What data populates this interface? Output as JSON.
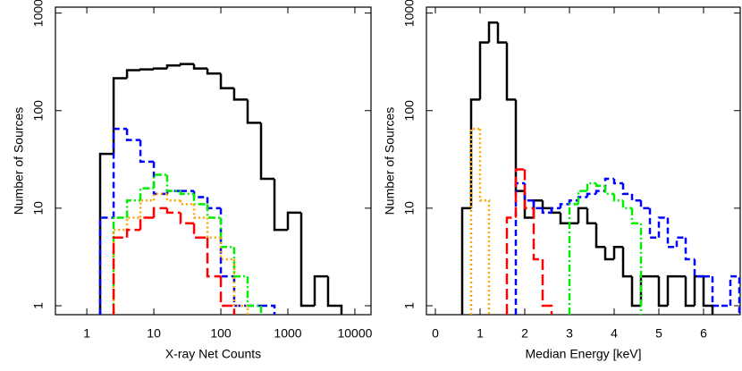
{
  "chart_data": [
    {
      "type": "histogram",
      "xlabel": "X-ray Net Counts",
      "ylabel": "Number of Sources",
      "xscale": "log",
      "yscale": "log",
      "xlim": [
        0.34,
        17400
      ],
      "xticks": [
        1,
        10,
        100,
        1000,
        10000
      ],
      "ylim": [
        0.81,
        1150
      ],
      "yticks": [
        1,
        10,
        100,
        1000
      ],
      "bins": [
        1.58,
        2.51,
        3.98,
        6.31,
        10,
        15.8,
        25.1,
        39.8,
        63.1,
        100,
        158,
        251,
        398,
        631,
        1000,
        1585,
        2512,
        3981,
        6310
      ],
      "series": [
        {
          "color": "#000000",
          "linestyle": "solid",
          "values": [
            36,
            215,
            260,
            265,
            270,
            290,
            300,
            270,
            240,
            170,
            130,
            75,
            20,
            6,
            9,
            1,
            2,
            1
          ]
        },
        {
          "color": "#0000ff",
          "linestyle": "dashed",
          "values": [
            8,
            65,
            50,
            30,
            14,
            15,
            15,
            13,
            10,
            2,
            1,
            1,
            1,
            null,
            null,
            null,
            null,
            null
          ]
        },
        {
          "color": "#00ee00",
          "linestyle": "dotdash",
          "values": [
            null,
            8,
            12,
            16,
            22,
            15,
            14,
            11,
            8,
            4,
            2,
            1,
            null,
            null,
            null,
            null,
            null,
            null
          ]
        },
        {
          "color": "#ffa500",
          "linestyle": "dotted",
          "values": [
            null,
            6,
            8,
            12,
            14,
            12,
            11,
            8,
            5,
            3,
            1,
            null,
            null,
            null,
            null,
            null,
            null,
            null
          ]
        },
        {
          "color": "#ff0000",
          "linestyle": "longdash",
          "values": [
            null,
            5,
            6,
            8,
            10,
            9,
            7,
            5,
            2,
            1,
            null,
            null,
            null,
            null,
            null,
            null,
            null,
            null
          ]
        }
      ]
    },
    {
      "type": "histogram",
      "xlabel": "Median Energy [keV]",
      "ylabel": "Number of Sources",
      "xscale": "linear",
      "yscale": "log",
      "xlim": [
        -0.2,
        6.82
      ],
      "xticks": [
        0,
        1,
        2,
        3,
        4,
        5,
        6
      ],
      "ylim": [
        0.81,
        1150
      ],
      "yticks": [
        1,
        10,
        100,
        1000
      ],
      "bins": [
        0.6,
        0.8,
        1.0,
        1.2,
        1.4,
        1.6,
        1.8,
        2.0,
        2.2,
        2.4,
        2.6,
        2.8,
        3.0,
        3.2,
        3.4,
        3.6,
        3.8,
        4.0,
        4.2,
        4.4,
        4.6,
        4.8,
        5.0,
        5.2,
        5.4,
        5.6,
        5.8,
        6.0,
        6.2,
        6.4,
        6.6,
        6.8
      ],
      "series": [
        {
          "color": "#000000",
          "linestyle": "solid",
          "values": [
            10,
            130,
            500,
            800,
            500,
            130,
            15,
            8,
            12,
            10,
            9,
            7,
            7,
            10,
            7,
            4,
            3,
            4,
            2,
            1,
            2,
            2,
            1,
            2,
            2,
            1,
            2,
            1,
            null,
            null,
            null
          ]
        },
        {
          "color": "#0000ff",
          "linestyle": "dashed",
          "values": [
            null,
            null,
            null,
            null,
            null,
            null,
            18,
            12,
            10,
            9,
            10,
            11,
            12,
            13,
            14,
            15,
            20,
            18,
            14,
            12,
            10,
            5,
            8,
            4,
            5,
            3,
            2,
            2,
            1,
            1,
            2
          ]
        },
        {
          "color": "#00ee00",
          "linestyle": "dotdash",
          "values": [
            null,
            null,
            null,
            null,
            null,
            null,
            null,
            null,
            null,
            null,
            null,
            null,
            11,
            15,
            18,
            17,
            14,
            12,
            10,
            7,
            null,
            null,
            null,
            null,
            null,
            null,
            null,
            null,
            null,
            null,
            null
          ]
        },
        {
          "color": "#ffa500",
          "linestyle": "dotted",
          "values": [
            null,
            65,
            12,
            null,
            null,
            null,
            null,
            null,
            null,
            null,
            null,
            null,
            null,
            null,
            null,
            null,
            null,
            null,
            null,
            null,
            null,
            null,
            null,
            null,
            null,
            null,
            null,
            null,
            null,
            null,
            null
          ]
        },
        {
          "color": "#ff0000",
          "linestyle": "longdash",
          "values": [
            null,
            null,
            null,
            null,
            null,
            8,
            25,
            10,
            3,
            1,
            null,
            null,
            null,
            null,
            null,
            null,
            null,
            null,
            null,
            null,
            null,
            null,
            null,
            null,
            null,
            null,
            null,
            null,
            null,
            null,
            null
          ]
        }
      ]
    }
  ]
}
